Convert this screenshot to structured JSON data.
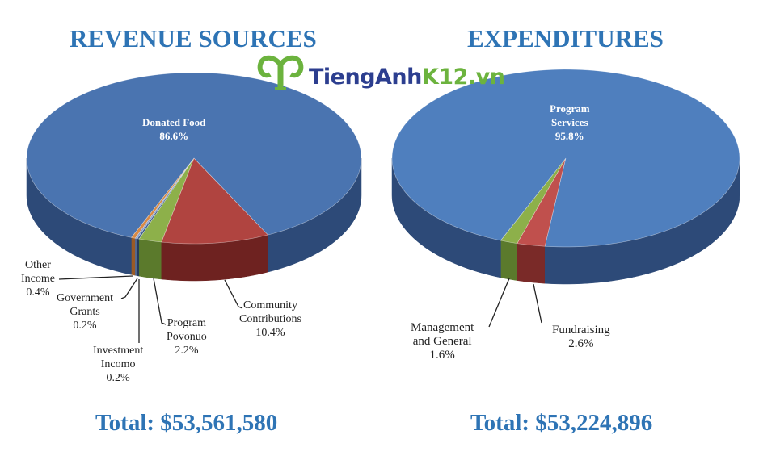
{
  "chart_data": [
    {
      "type": "pie",
      "title": "REVENUE SOURCES",
      "total_label": "Total: $53,561,580",
      "slices": [
        {
          "label": "Donated Food",
          "value": 86.6,
          "display": "86.6%",
          "color": "#4a74b0",
          "side": "#2d4a78"
        },
        {
          "label": "Other Income",
          "value": 0.4,
          "display": "0.4%",
          "color": "#d88a45",
          "side": "#9a5a25"
        },
        {
          "label": "Government Grants",
          "value": 0.2,
          "display": "0.2%",
          "color": "#8aa0cc",
          "side": "#55688f"
        },
        {
          "label": "Investment Incomo",
          "value": 0.2,
          "display": "0.2%",
          "color": "#3c5c8c",
          "side": "#243a5c"
        },
        {
          "label": "Program Povonuo",
          "value": 2.2,
          "display": "2.2%",
          "color": "#8db04a",
          "side": "#5b7a2c"
        },
        {
          "label": "Community Contributions",
          "value": 10.4,
          "display": "10.4%",
          "color": "#b04440",
          "side": "#6e2220"
        }
      ]
    },
    {
      "type": "pie",
      "title": "EXPENDITURES",
      "total_label": "Total: $53,224,896",
      "slices": [
        {
          "label": "Program Services",
          "value": 95.8,
          "display": "95.8%",
          "color": "#4f7fbe",
          "side": "#2d4a78"
        },
        {
          "label": "Management and General",
          "value": 1.6,
          "display": "1.6%",
          "color": "#8db04a",
          "side": "#5b7a2c"
        },
        {
          "label": "Fundraising",
          "value": 2.6,
          "display": "2.6%",
          "color": "#c0504d",
          "side": "#7a2a28"
        }
      ]
    }
  ],
  "labels": {
    "donated_1": "Donated Food",
    "program_services_1": "Program",
    "program_services_2": "Services",
    "other_1": "Other",
    "other_2": "Income",
    "gov_1": "Government",
    "gov_2": "Grants",
    "inv_1": "Investment",
    "inv_2": "Incomo",
    "prog_1": "Program",
    "prog_2": "Povonuo",
    "comm_1": "Community",
    "comm_2": "Contributions",
    "mgmt_1": "Management",
    "mgmt_2": "and General",
    "fund_1": "Fundraising"
  },
  "watermark": {
    "brand_dark": "TiengAnh",
    "brand_green": "K12.vn"
  }
}
